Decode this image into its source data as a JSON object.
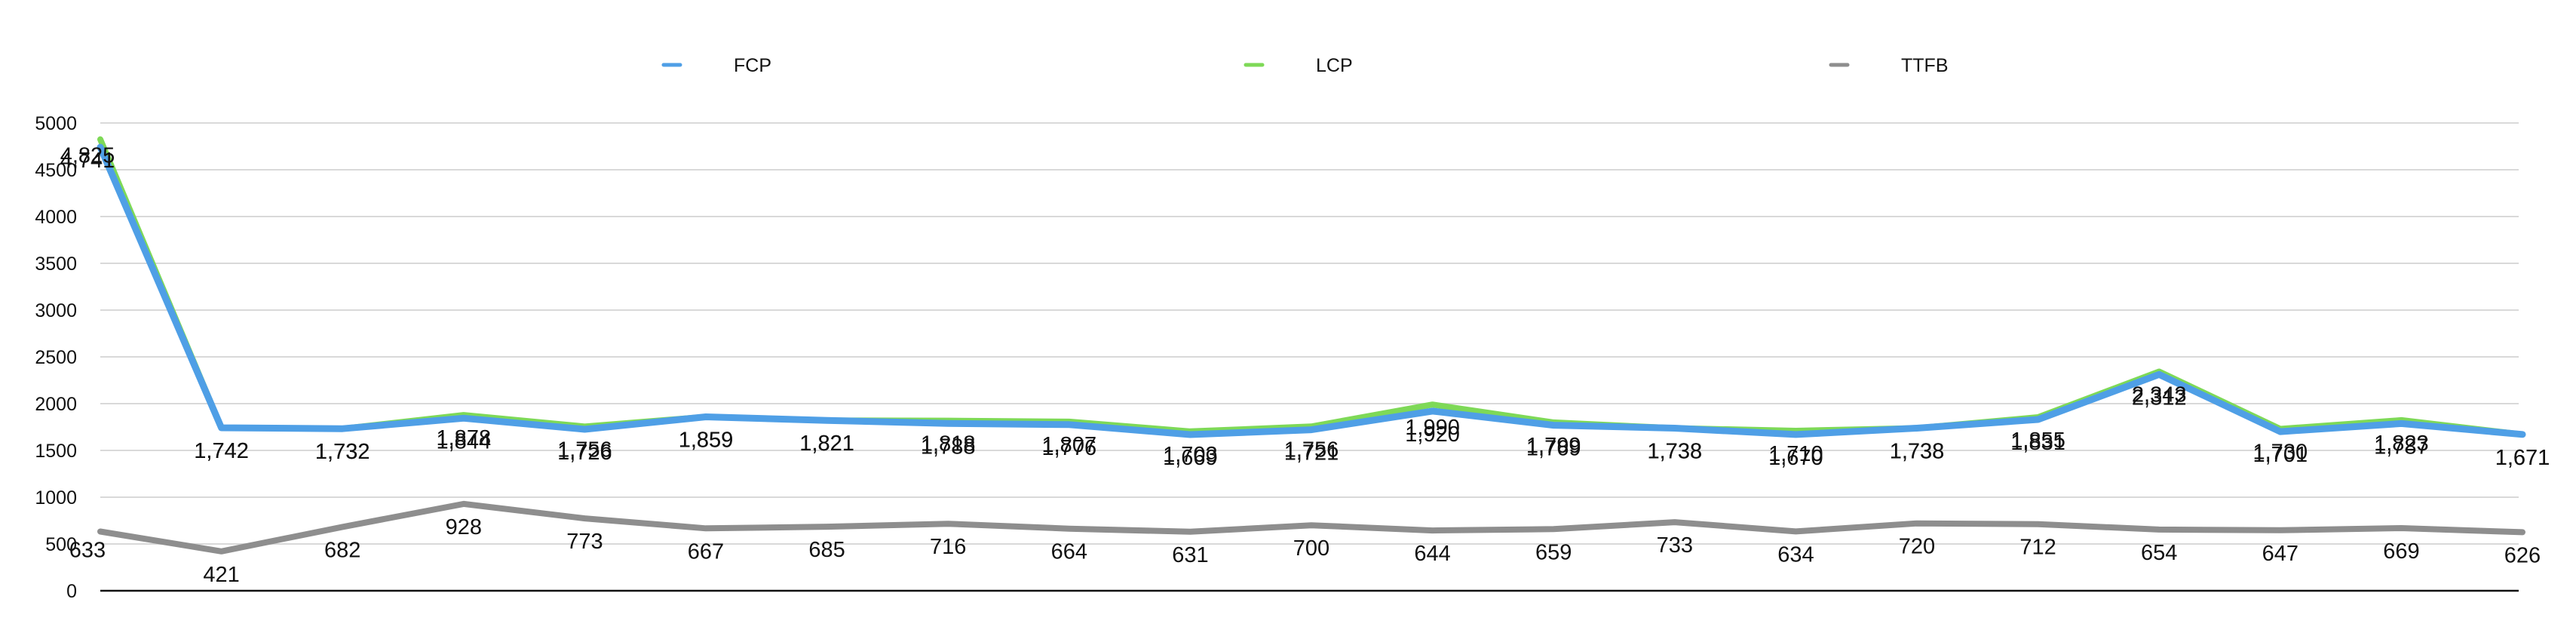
{
  "chart_data": {
    "type": "line",
    "title": "",
    "xlabel": "",
    "ylabel": "",
    "ylim": [
      0,
      5000
    ],
    "yticks": [
      0,
      500,
      1000,
      1500,
      2000,
      2500,
      3000,
      3500,
      4000,
      4500,
      5000
    ],
    "grid": true,
    "legend_position": "top",
    "series": [
      {
        "name": "FCP",
        "color": "#4f9fe6",
        "values": [
          4741,
          1742,
          1732,
          1844,
          1726,
          1859,
          1821,
          1788,
          1776,
          1669,
          1721,
          1920,
          1769,
          1738,
          1670,
          1738,
          1831,
          2312,
          1701,
          1787,
          1671
        ],
        "labels": [
          "4,741",
          "1,742",
          "1,732",
          "1,844",
          "1,726",
          "1,859",
          "1,821",
          "1,788",
          "1,776",
          "1,669",
          "1,721",
          "1,920",
          "1,769",
          "1,738",
          "1,670",
          "1,738",
          "1,831",
          "2,312",
          "1,701",
          "1,787",
          "1,671"
        ]
      },
      {
        "name": "LCP",
        "color": "#7ed957",
        "values": [
          4825,
          1742,
          1732,
          1878,
          1756,
          1859,
          1821,
          1818,
          1807,
          1703,
          1756,
          1990,
          1799,
          1738,
          1710,
          1738,
          1855,
          2343,
          1730,
          1823,
          1671
        ],
        "labels": [
          "4,825",
          "1,742",
          "1,732",
          "1,878",
          "1,756",
          "1,859",
          "1,821",
          "1,818",
          "1,807",
          "1,703",
          "1,756",
          "1,990",
          "1,799",
          "1,738",
          "1,710",
          "1,738",
          "1,855",
          "2,343",
          "1,730",
          "1,823",
          "1,671"
        ]
      },
      {
        "name": "TTFB",
        "color": "#8e8e8e",
        "values": [
          633,
          421,
          682,
          928,
          773,
          667,
          685,
          716,
          664,
          631,
          700,
          644,
          659,
          733,
          634,
          720,
          712,
          654,
          647,
          669,
          626
        ],
        "labels": [
          "633",
          "421",
          "682",
          "928",
          "773",
          "667",
          "685",
          "716",
          "664",
          "631",
          "700",
          "644",
          "659",
          "733",
          "634",
          "720",
          "712",
          "654",
          "647",
          "669",
          "626"
        ]
      }
    ]
  }
}
